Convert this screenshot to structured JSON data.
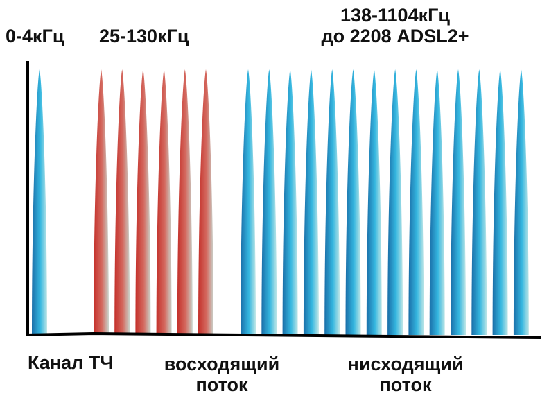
{
  "labels": {
    "voice_band": "0-4кГц",
    "upstream_band": "25-130кГц",
    "downstream_band_line1": "138-1104кГц",
    "downstream_band_line2": "до 2208 ADSL2+",
    "voice_channel": "Канал ТЧ",
    "upstream_line1": "восходящий",
    "upstream_line2": "поток",
    "downstream_line1": "нисходящий",
    "downstream_line2": "поток"
  },
  "colors": {
    "axis": "#000000",
    "voice_tip": "#1a6ea8",
    "voice_mid": "#35b7e0",
    "voice_base": "#bfe6e6",
    "upstream_tip": "#c4302a",
    "upstream_mid": "#d46a60",
    "upstream_base": "#c8d4cc",
    "downstream_tip": "#1a6ea8",
    "downstream_mid": "#35b7e0",
    "downstream_base": "#bfe6e6"
  },
  "bands": {
    "voice_count": 1,
    "upstream_count": 6,
    "downstream_count": 14
  }
}
